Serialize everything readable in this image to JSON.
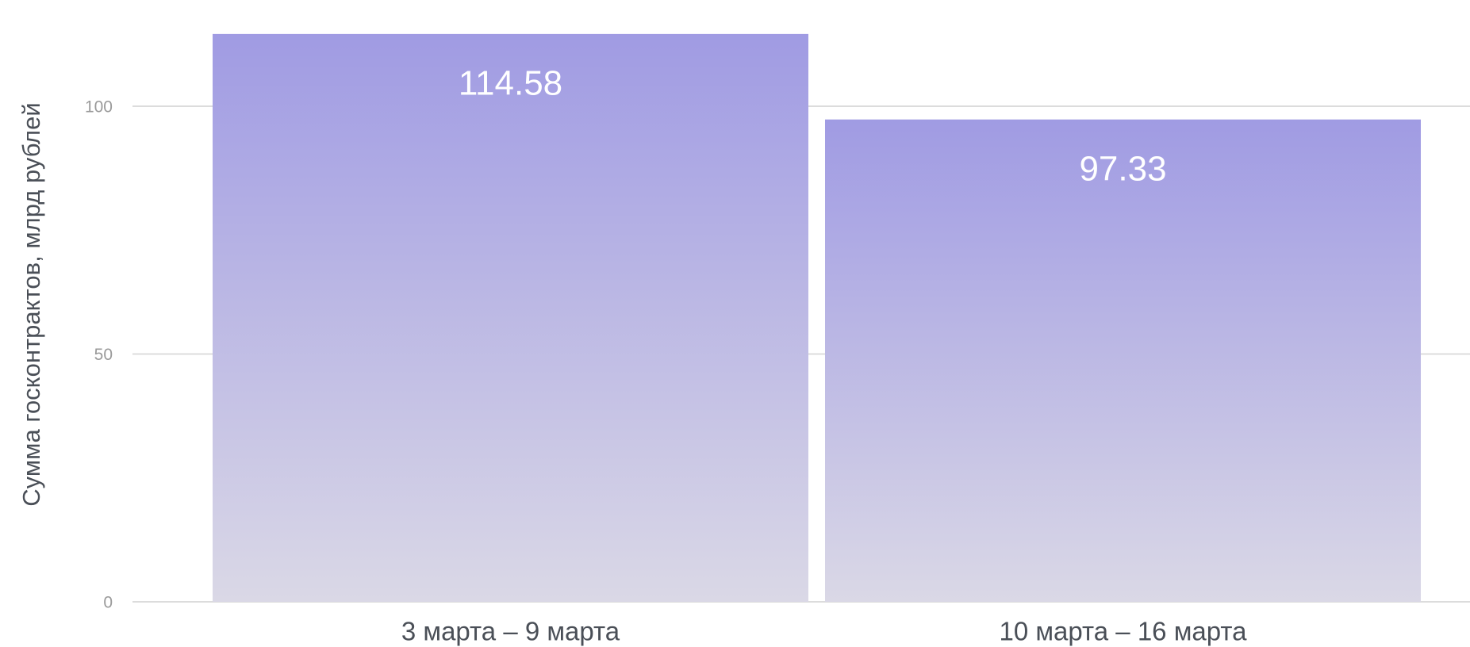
{
  "chart_data": {
    "type": "bar",
    "y_label": "Сумма госконтрактов, млрд рублей",
    "categories": [
      "3 марта – 9 марта",
      "10 марта – 16 марта"
    ],
    "values": [
      114.58,
      97.33
    ],
    "color": "#a09be3",
    "ylim": [
      0,
      120
    ],
    "yticks": [
      0,
      50,
      100
    ],
    "grid": true
  }
}
